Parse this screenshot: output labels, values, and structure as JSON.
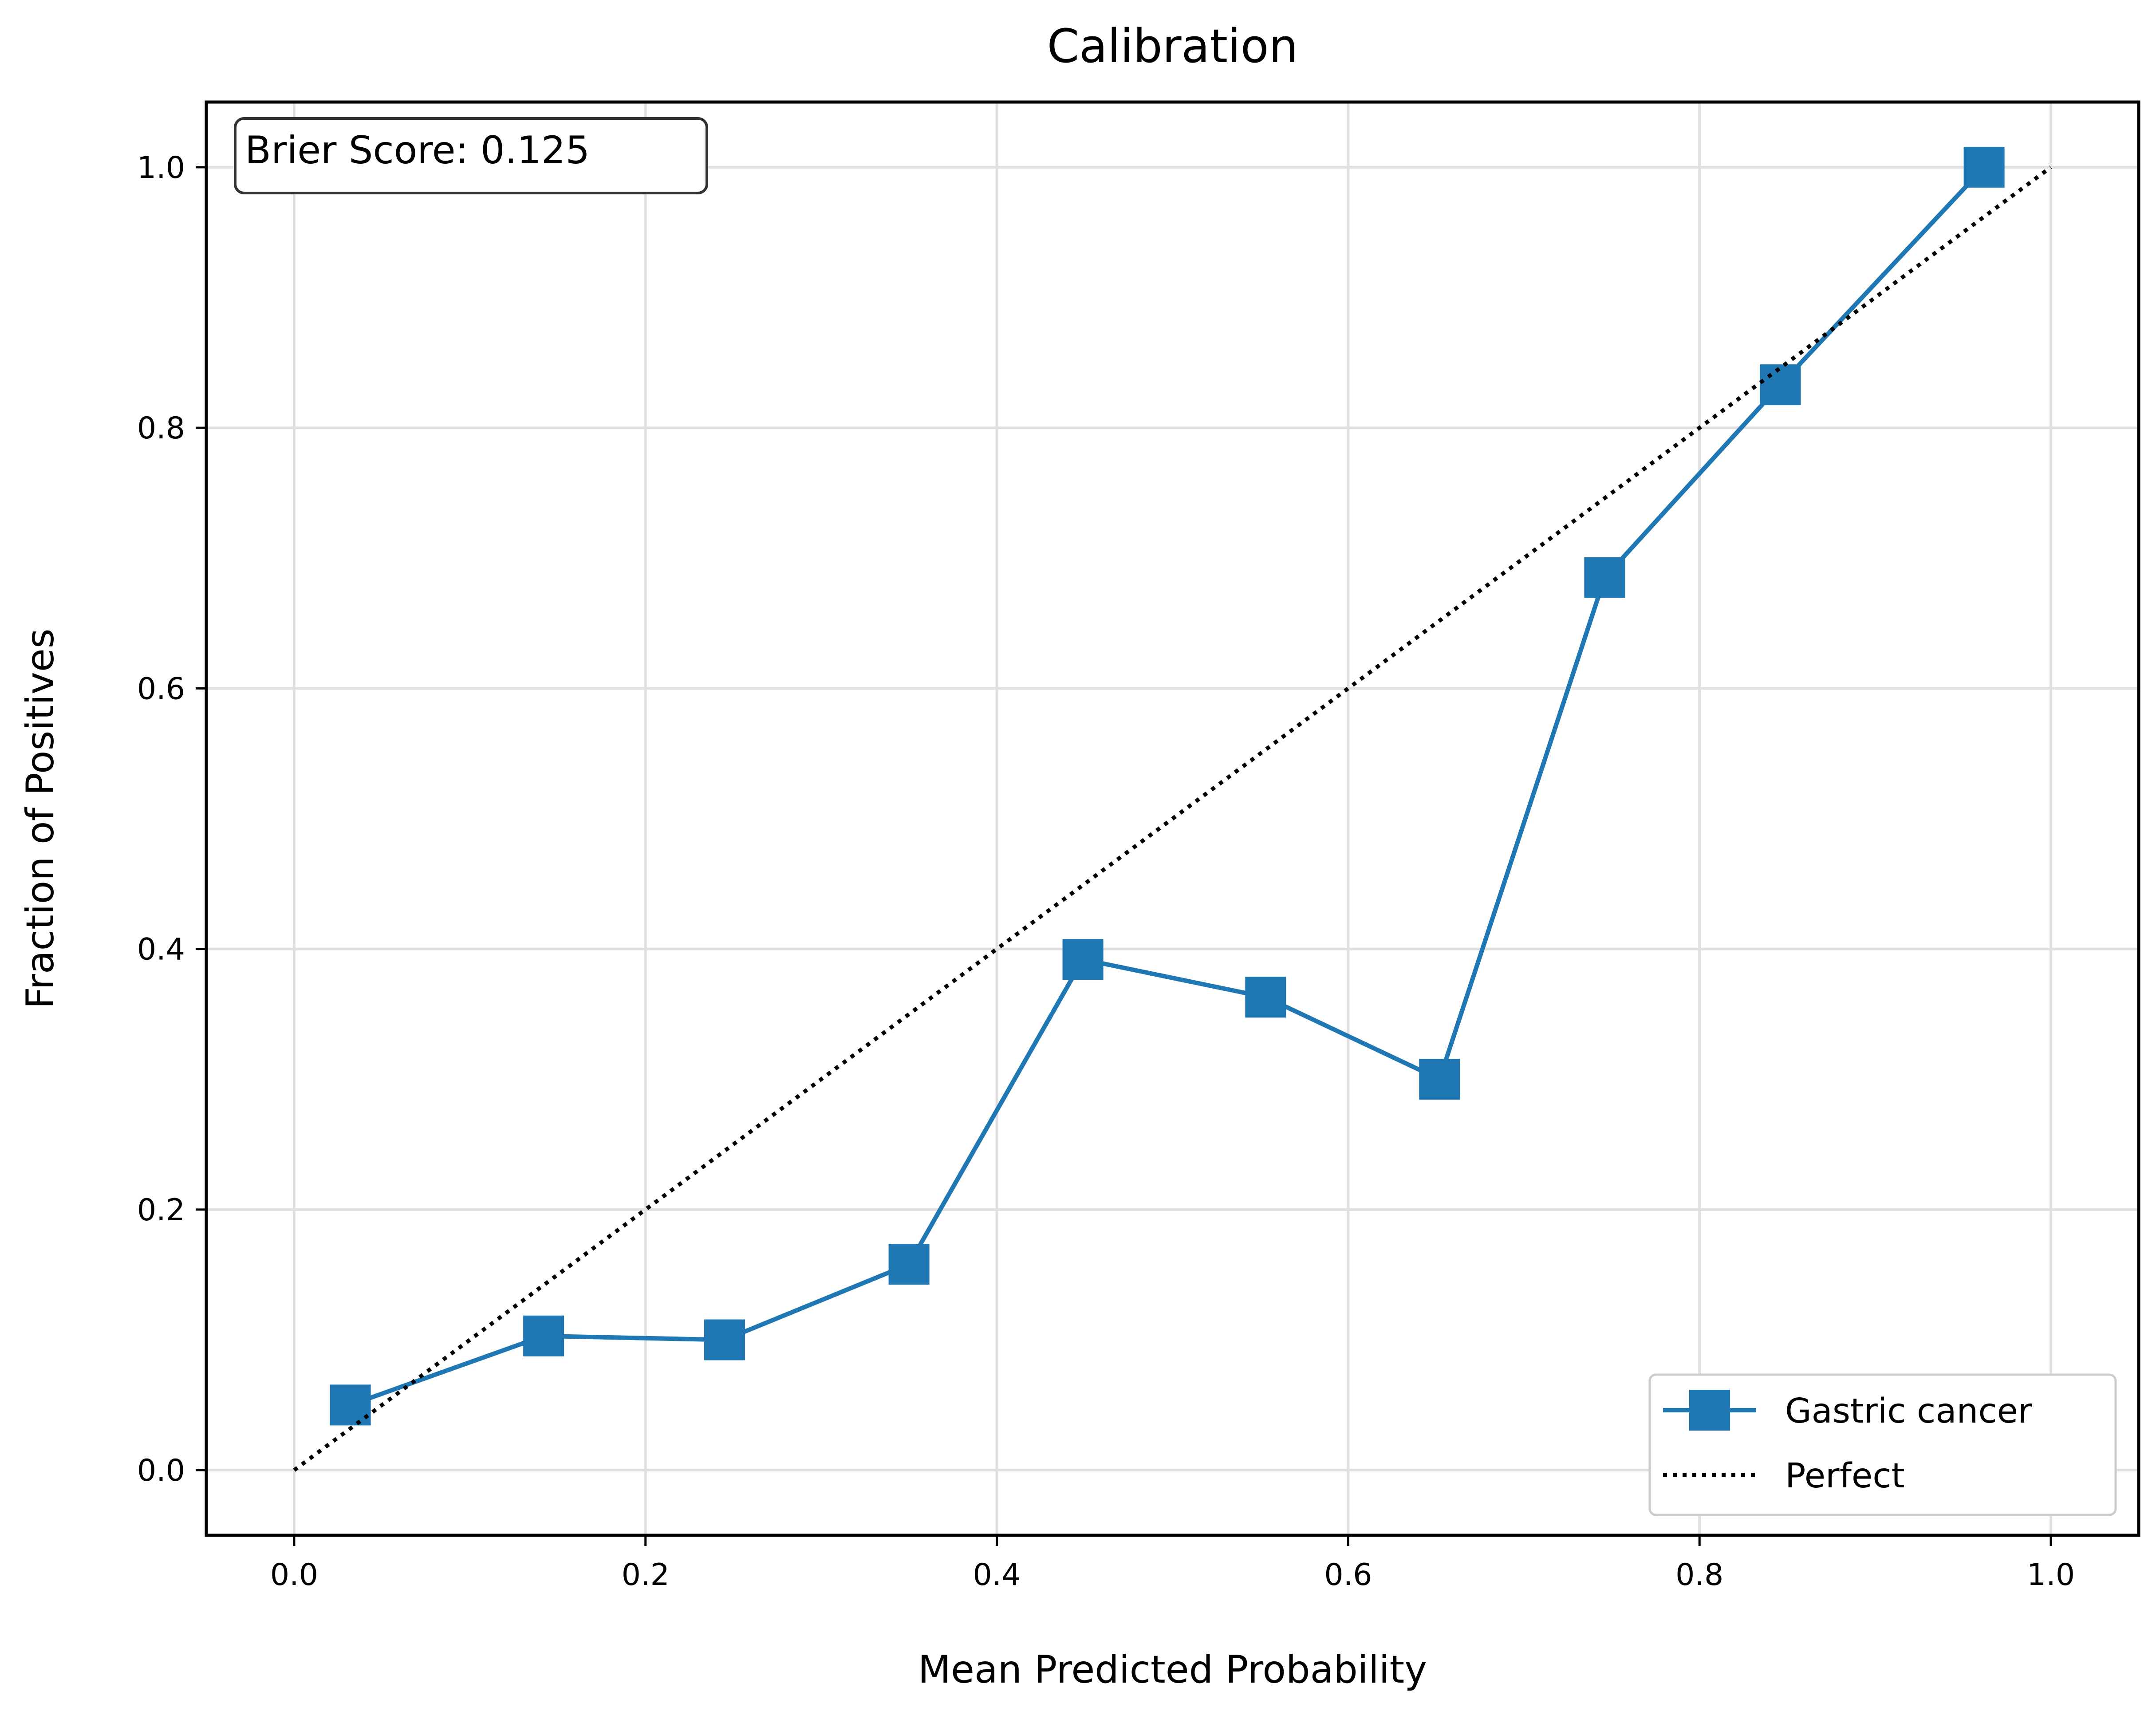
{
  "chart_data": {
    "type": "line",
    "title": "Calibration",
    "xlabel": "Mean Predicted Probability",
    "ylabel": "Fraction of Positives",
    "xlim": [
      -0.05,
      1.05
    ],
    "ylim": [
      -0.05,
      1.05
    ],
    "xticks": [
      0.0,
      0.2,
      0.4,
      0.6,
      0.8,
      1.0
    ],
    "yticks": [
      0.0,
      0.2,
      0.4,
      0.6,
      0.8,
      1.0
    ],
    "xtick_labels": [
      "0.0",
      "0.2",
      "0.4",
      "0.6",
      "0.8",
      "1.0"
    ],
    "ytick_labels": [
      "0.0",
      "0.2",
      "0.4",
      "0.6",
      "0.8",
      "1.0"
    ],
    "grid": true,
    "legend_position": "bottom-right",
    "annotation": "Brier Score: 0.125",
    "series": [
      {
        "name": "Gastric cancer",
        "color": "#1f77b4",
        "marker": "square",
        "style": "solid",
        "x": [
          0.032,
          0.142,
          0.245,
          0.35,
          0.449,
          0.553,
          0.652,
          0.746,
          0.846,
          0.962
        ],
        "y": [
          0.05,
          0.103,
          0.1,
          0.158,
          0.392,
          0.363,
          0.3,
          0.685,
          0.833,
          1.0
        ]
      },
      {
        "name": "Perfect",
        "color": "#000000",
        "style": "dotted",
        "x": [
          0.0,
          1.0
        ],
        "y": [
          0.0,
          1.0
        ]
      }
    ]
  }
}
